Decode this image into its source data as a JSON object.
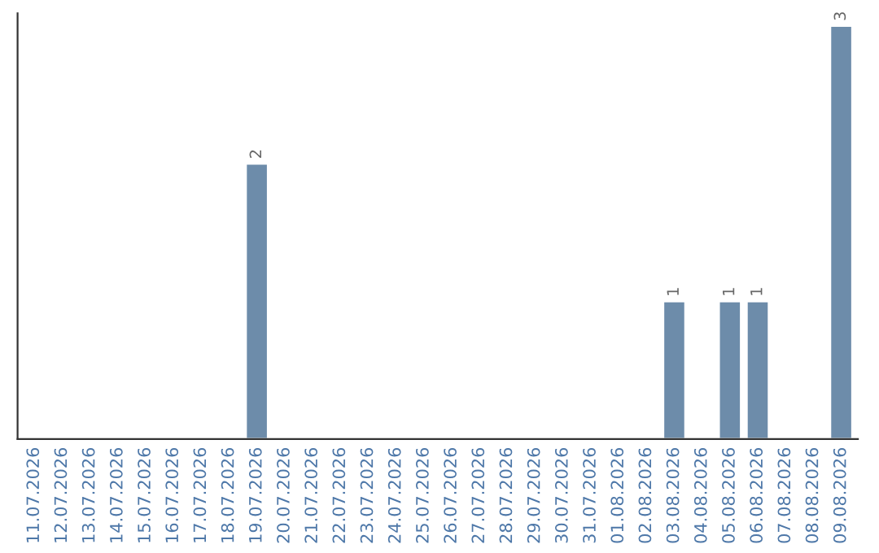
{
  "chart_data": {
    "type": "bar",
    "categories": [
      "11.07.2026",
      "12.07.2026",
      "13.07.2026",
      "14.07.2026",
      "15.07.2026",
      "16.07.2026",
      "17.07.2026",
      "18.07.2026",
      "19.07.2026",
      "20.07.2026",
      "21.07.2026",
      "22.07.2026",
      "23.07.2026",
      "24.07.2026",
      "25.07.2026",
      "26.07.2026",
      "27.07.2026",
      "28.07.2026",
      "29.07.2026",
      "30.07.2026",
      "31.07.2026",
      "01.08.2026",
      "02.08.2026",
      "03.08.2026",
      "04.08.2026",
      "05.08.2026",
      "06.08.2026",
      "07.08.2026",
      "08.08.2026",
      "09.08.2026"
    ],
    "values": [
      null,
      null,
      null,
      null,
      null,
      null,
      null,
      null,
      2,
      null,
      null,
      null,
      null,
      null,
      null,
      null,
      null,
      null,
      null,
      null,
      null,
      null,
      null,
      1,
      null,
      1,
      1,
      null,
      null,
      3
    ],
    "value_labels": [
      null,
      null,
      null,
      null,
      null,
      null,
      null,
      null,
      "2",
      null,
      null,
      null,
      null,
      null,
      null,
      null,
      null,
      null,
      null,
      null,
      null,
      null,
      null,
      "1",
      null,
      "1",
      "1",
      null,
      null,
      "3"
    ],
    "color": "#6d8caa",
    "tick_labels": "x",
    "grid": false,
    "legend": false
  }
}
